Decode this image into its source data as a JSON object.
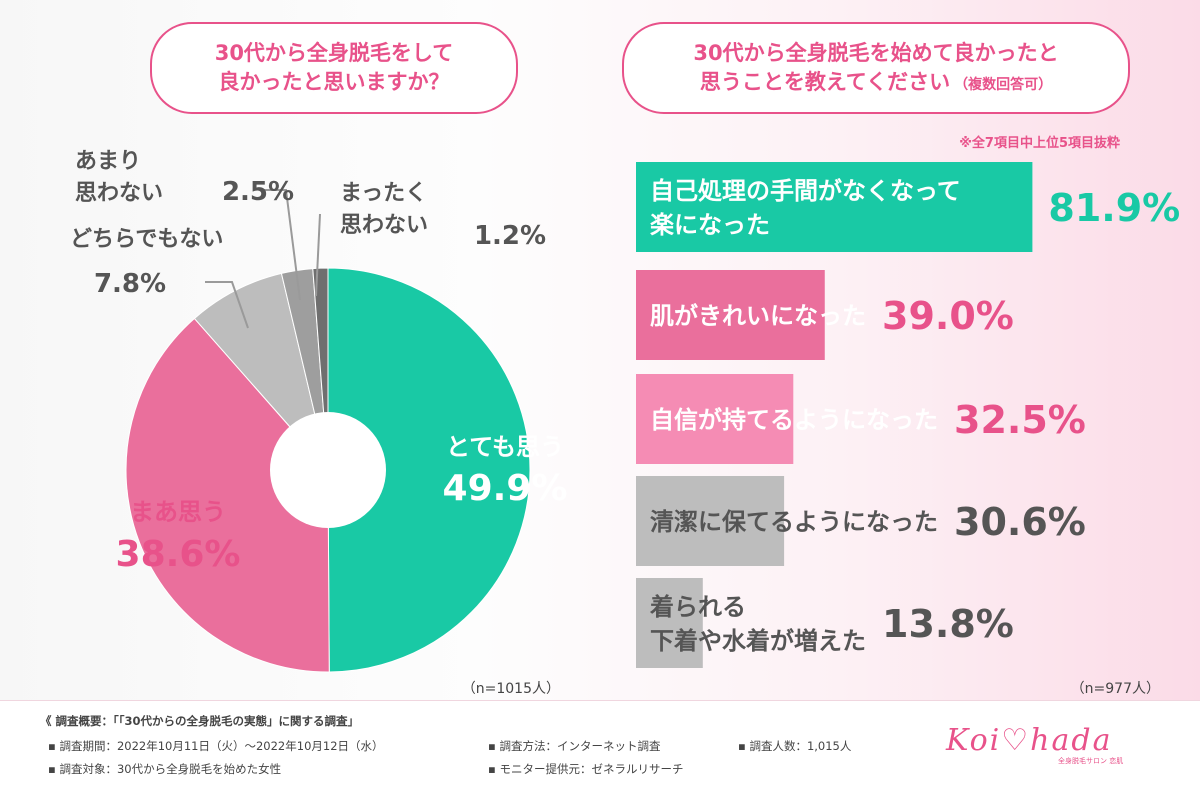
{
  "left": {
    "question_line1": "30代から全身脱毛をして",
    "question_line2": "良かったと思いますか？",
    "sample": "（n=1015人）"
  },
  "right": {
    "question_line1": "30代から全身脱毛を始めて良かったと",
    "question_line2": "思うことを教えてください",
    "question_suffix": "（複数回答可）",
    "note": "※全7項目中上位5項目抜粋",
    "sample": "（n=977人）"
  },
  "chart_data": [
    {
      "type": "pie",
      "categories": [
        "とても思う",
        "まあ思う",
        "どちらでもない",
        "あまり思わない",
        "まったく思わない"
      ],
      "values": [
        49.9,
        38.6,
        7.8,
        2.5,
        1.2
      ],
      "value_labels": [
        "49.9%",
        "38.6%",
        "7.8%",
        "2.5%",
        "1.2%"
      ],
      "colors": [
        "#19c9a5",
        "#ea6f9c",
        "#bdbdbd",
        "#9e9e9e",
        "#6f6f6f"
      ],
      "unit": "%"
    },
    {
      "type": "bar",
      "orientation": "horizontal",
      "categories": [
        "自己処理の手間がなくなって楽になった",
        "肌がきれいになった",
        "自信が持てるようになった",
        "清潔に保てるようになった",
        "着られる下着や水着が増えた"
      ],
      "label_lines": [
        [
          "自己処理の手間がなくなって",
          "楽になった"
        ],
        [
          "肌がきれいになった"
        ],
        [
          "自信が持てるようになった"
        ],
        [
          "清潔に保てるようになった"
        ],
        [
          "着られる",
          "下着や水着が増えた"
        ]
      ],
      "values": [
        81.9,
        39.0,
        32.5,
        30.6,
        13.8
      ],
      "value_labels": [
        "81.9%",
        "39.0%",
        "32.5%",
        "30.6%",
        "13.8%"
      ],
      "colors": [
        "#19c9a5",
        "#ea6f9c",
        "#f58cb4",
        "#bdbdbd",
        "#bdbdbd"
      ],
      "label_colors": [
        "#ffffff",
        "#ffffff",
        "#ffffff",
        "#555555",
        "#555555"
      ],
      "value_colors": [
        "#19c9a5",
        "#e8528a",
        "#e8528a",
        "#555555",
        "#555555"
      ],
      "xlim": [
        0,
        100
      ],
      "unit": "%"
    }
  ],
  "footer": {
    "title": "《 調査概要：「「30代からの全身脱毛の実態」に関する調査」",
    "period": "▪ 調査期間：2022年10月11日（火）〜2022年10月12日（水）",
    "target": "▪ 調査対象：30代から全身脱毛を始めた女性",
    "method": "▪ 調査方法：インターネット調査",
    "provider": "▪ モニター提供元：ゼネラルリサーチ",
    "count": "▪ 調査人数：1,015人"
  },
  "brand": {
    "logo": "Koi♡hada",
    "sub": "全身脱毛サロン 恋肌"
  }
}
